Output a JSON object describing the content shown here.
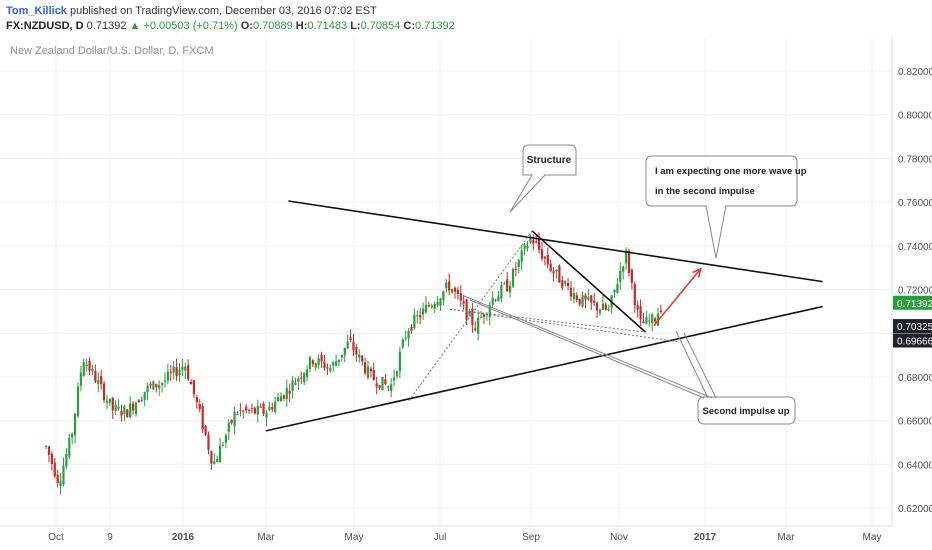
{
  "header": {
    "author": "Tom_Killick",
    "published_text": "published on TradingView.com, December 03, 2016 07:02 EST",
    "symbol": "FX:NZDUSD, D",
    "last": "0.71392",
    "change": "+0.00503 (+0.71%)",
    "o_label": "O:",
    "o_value": "0.70889",
    "h_label": "H:",
    "h_value": "0.71483",
    "l_label": "L:",
    "l_value": "0.70854",
    "c_label": "C:",
    "c_value": "0.71392"
  },
  "colors": {
    "up": "#2a9d3c",
    "down": "#c62828",
    "grid": "#eef0f3",
    "trendline": "#111111",
    "projection": "#e53935",
    "callout_line": "#888888",
    "price_tag": "#2a9d3c"
  },
  "chart_data": {
    "type": "candlestick",
    "title": "New Zealand Dollar/U.S. Dollar, D, FXCM",
    "x_tick_labels": [
      "Oct",
      "9",
      "2016",
      "Mar",
      "May",
      "Jul",
      "Sep",
      "Nov",
      "2017",
      "Mar",
      "May"
    ],
    "y_tick_labels": [
      "0.82000",
      "0.80000",
      "0.78000",
      "0.76000",
      "0.74000",
      "0.72000",
      "0.68000",
      "0.66000",
      "0.64000",
      "0.62000"
    ],
    "ylim": [
      0.615,
      0.835
    ],
    "grid": true,
    "path_points": [
      {
        "x": "2015-09-24",
        "y": 0.648
      },
      {
        "x": "2015-10-03",
        "y": 0.632
      },
      {
        "x": "2015-10-12",
        "y": 0.653
      },
      {
        "x": "2015-10-20",
        "y": 0.689
      },
      {
        "x": "2015-10-30",
        "y": 0.678
      },
      {
        "x": "2015-11-10",
        "y": 0.665
      },
      {
        "x": "2015-11-20",
        "y": 0.664
      },
      {
        "x": "2015-12-03",
        "y": 0.674
      },
      {
        "x": "2015-12-16",
        "y": 0.678
      },
      {
        "x": "2015-12-31",
        "y": 0.686
      },
      {
        "x": "2016-01-10",
        "y": 0.664
      },
      {
        "x": "2016-01-20",
        "y": 0.64
      },
      {
        "x": "2016-02-05",
        "y": 0.664
      },
      {
        "x": "2016-02-26",
        "y": 0.664
      },
      {
        "x": "2016-03-15",
        "y": 0.676
      },
      {
        "x": "2016-03-30",
        "y": 0.688
      },
      {
        "x": "2016-04-12",
        "y": 0.684
      },
      {
        "x": "2016-04-25",
        "y": 0.696
      },
      {
        "x": "2016-05-10",
        "y": 0.68
      },
      {
        "x": "2016-05-24",
        "y": 0.675
      },
      {
        "x": "2016-06-05",
        "y": 0.702
      },
      {
        "x": "2016-06-22",
        "y": 0.714
      },
      {
        "x": "2016-07-05",
        "y": 0.722
      },
      {
        "x": "2016-07-14",
        "y": 0.712
      },
      {
        "x": "2016-07-23",
        "y": 0.703
      },
      {
        "x": "2016-08-04",
        "y": 0.716
      },
      {
        "x": "2016-08-15",
        "y": 0.722
      },
      {
        "x": "2016-08-31",
        "y": 0.744
      },
      {
        "x": "2016-09-16",
        "y": 0.728
      },
      {
        "x": "2016-10-05",
        "y": 0.715
      },
      {
        "x": "2016-10-25",
        "y": 0.71
      },
      {
        "x": "2016-11-06",
        "y": 0.737
      },
      {
        "x": "2016-11-16",
        "y": 0.704
      },
      {
        "x": "2016-11-26",
        "y": 0.706
      },
      {
        "x": "2016-12-02",
        "y": 0.714
      }
    ],
    "trendlines": [
      {
        "name": "upper",
        "from": {
          "x": "2016-03-13",
          "y": 0.7605
        },
        "to": {
          "x": "2017-03-25",
          "y": 0.7236
        }
      },
      {
        "name": "lower",
        "from": {
          "x": "2016-02-26",
          "y": 0.6553
        },
        "to": {
          "x": "2017-03-25",
          "y": 0.7122
        }
      },
      {
        "name": "leg",
        "from": {
          "x": "2016-09-01",
          "y": 0.7468
        },
        "to": {
          "x": "2016-11-20",
          "y": 0.7005
        }
      }
    ],
    "dotted_lines": [
      {
        "from": {
          "x": "2016-06-06",
          "y": 0.6691
        },
        "to": {
          "x": "2016-09-01",
          "y": 0.7468
        }
      },
      {
        "from": {
          "x": "2016-07-05",
          "y": 0.711
        },
        "to": {
          "x": "2016-11-20",
          "y": 0.7005
        }
      },
      {
        "from": {
          "x": "2016-07-05",
          "y": 0.711
        },
        "to": {
          "x": "2016-12-14",
          "y": 0.696
        }
      }
    ],
    "projection_arrow": {
      "from": {
        "x": "2016-11-26",
        "y": 0.7035
      },
      "to": {
        "x": "2016-12-29",
        "y": 0.7295
      }
    },
    "annotations": [
      {
        "id": "structure",
        "text": "Structure"
      },
      {
        "id": "expect",
        "text_lines": [
          "I am expecting one more wave up",
          "in the second impulse"
        ]
      },
      {
        "id": "impulse",
        "text": "Second impulse up"
      }
    ],
    "price_tags": [
      {
        "value": "0.71392",
        "style": "filled"
      },
      {
        "value": "0.70325",
        "style": "dark"
      },
      {
        "value": "0.69666",
        "style": "dark"
      }
    ]
  }
}
